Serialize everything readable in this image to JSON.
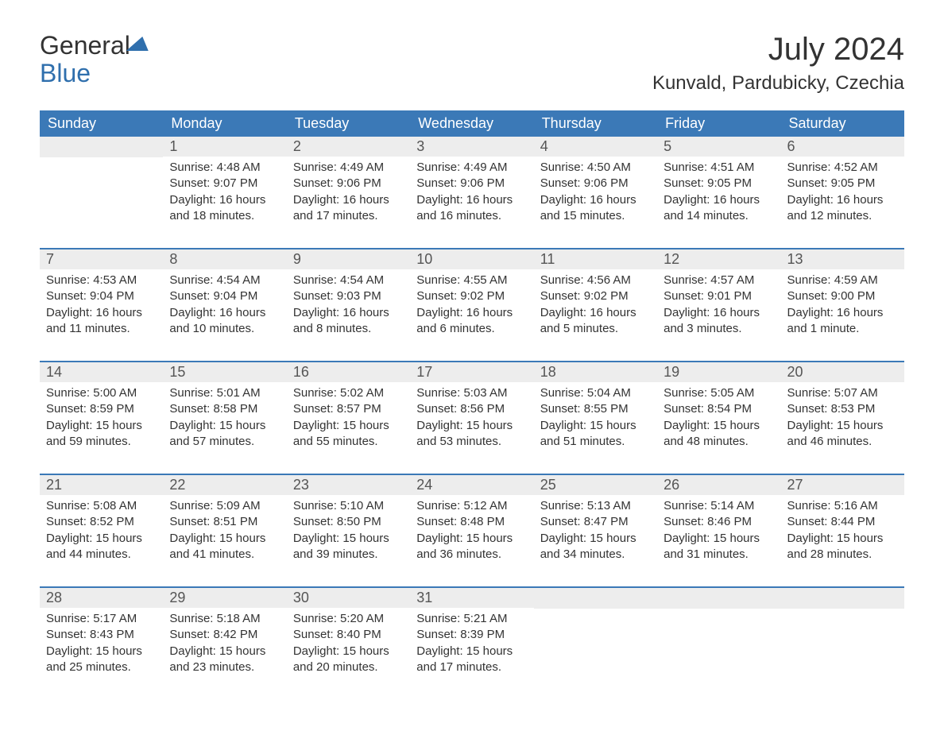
{
  "logo": {
    "line1": "General",
    "line2": "Blue"
  },
  "title": "July 2024",
  "location": "Kunvald, Pardubicky, Czechia",
  "colors": {
    "header_bg": "#3b79b7",
    "header_text": "#ffffff",
    "daynum_bg": "#ededed",
    "accent": "#2f6fad",
    "body_text": "#333333"
  },
  "dayHeaders": [
    "Sunday",
    "Monday",
    "Tuesday",
    "Wednesday",
    "Thursday",
    "Friday",
    "Saturday"
  ],
  "weeks": [
    [
      null,
      {
        "n": "1",
        "sunrise": "4:48 AM",
        "sunset": "9:07 PM",
        "daylight": "16 hours and 18 minutes."
      },
      {
        "n": "2",
        "sunrise": "4:49 AM",
        "sunset": "9:06 PM",
        "daylight": "16 hours and 17 minutes."
      },
      {
        "n": "3",
        "sunrise": "4:49 AM",
        "sunset": "9:06 PM",
        "daylight": "16 hours and 16 minutes."
      },
      {
        "n": "4",
        "sunrise": "4:50 AM",
        "sunset": "9:06 PM",
        "daylight": "16 hours and 15 minutes."
      },
      {
        "n": "5",
        "sunrise": "4:51 AM",
        "sunset": "9:05 PM",
        "daylight": "16 hours and 14 minutes."
      },
      {
        "n": "6",
        "sunrise": "4:52 AM",
        "sunset": "9:05 PM",
        "daylight": "16 hours and 12 minutes."
      }
    ],
    [
      {
        "n": "7",
        "sunrise": "4:53 AM",
        "sunset": "9:04 PM",
        "daylight": "16 hours and 11 minutes."
      },
      {
        "n": "8",
        "sunrise": "4:54 AM",
        "sunset": "9:04 PM",
        "daylight": "16 hours and 10 minutes."
      },
      {
        "n": "9",
        "sunrise": "4:54 AM",
        "sunset": "9:03 PM",
        "daylight": "16 hours and 8 minutes."
      },
      {
        "n": "10",
        "sunrise": "4:55 AM",
        "sunset": "9:02 PM",
        "daylight": "16 hours and 6 minutes."
      },
      {
        "n": "11",
        "sunrise": "4:56 AM",
        "sunset": "9:02 PM",
        "daylight": "16 hours and 5 minutes."
      },
      {
        "n": "12",
        "sunrise": "4:57 AM",
        "sunset": "9:01 PM",
        "daylight": "16 hours and 3 minutes."
      },
      {
        "n": "13",
        "sunrise": "4:59 AM",
        "sunset": "9:00 PM",
        "daylight": "16 hours and 1 minute."
      }
    ],
    [
      {
        "n": "14",
        "sunrise": "5:00 AM",
        "sunset": "8:59 PM",
        "daylight": "15 hours and 59 minutes."
      },
      {
        "n": "15",
        "sunrise": "5:01 AM",
        "sunset": "8:58 PM",
        "daylight": "15 hours and 57 minutes."
      },
      {
        "n": "16",
        "sunrise": "5:02 AM",
        "sunset": "8:57 PM",
        "daylight": "15 hours and 55 minutes."
      },
      {
        "n": "17",
        "sunrise": "5:03 AM",
        "sunset": "8:56 PM",
        "daylight": "15 hours and 53 minutes."
      },
      {
        "n": "18",
        "sunrise": "5:04 AM",
        "sunset": "8:55 PM",
        "daylight": "15 hours and 51 minutes."
      },
      {
        "n": "19",
        "sunrise": "5:05 AM",
        "sunset": "8:54 PM",
        "daylight": "15 hours and 48 minutes."
      },
      {
        "n": "20",
        "sunrise": "5:07 AM",
        "sunset": "8:53 PM",
        "daylight": "15 hours and 46 minutes."
      }
    ],
    [
      {
        "n": "21",
        "sunrise": "5:08 AM",
        "sunset": "8:52 PM",
        "daylight": "15 hours and 44 minutes."
      },
      {
        "n": "22",
        "sunrise": "5:09 AM",
        "sunset": "8:51 PM",
        "daylight": "15 hours and 41 minutes."
      },
      {
        "n": "23",
        "sunrise": "5:10 AM",
        "sunset": "8:50 PM",
        "daylight": "15 hours and 39 minutes."
      },
      {
        "n": "24",
        "sunrise": "5:12 AM",
        "sunset": "8:48 PM",
        "daylight": "15 hours and 36 minutes."
      },
      {
        "n": "25",
        "sunrise": "5:13 AM",
        "sunset": "8:47 PM",
        "daylight": "15 hours and 34 minutes."
      },
      {
        "n": "26",
        "sunrise": "5:14 AM",
        "sunset": "8:46 PM",
        "daylight": "15 hours and 31 minutes."
      },
      {
        "n": "27",
        "sunrise": "5:16 AM",
        "sunset": "8:44 PM",
        "daylight": "15 hours and 28 minutes."
      }
    ],
    [
      {
        "n": "28",
        "sunrise": "5:17 AM",
        "sunset": "8:43 PM",
        "daylight": "15 hours and 25 minutes."
      },
      {
        "n": "29",
        "sunrise": "5:18 AM",
        "sunset": "8:42 PM",
        "daylight": "15 hours and 23 minutes."
      },
      {
        "n": "30",
        "sunrise": "5:20 AM",
        "sunset": "8:40 PM",
        "daylight": "15 hours and 20 minutes."
      },
      {
        "n": "31",
        "sunrise": "5:21 AM",
        "sunset": "8:39 PM",
        "daylight": "15 hours and 17 minutes."
      },
      null,
      null,
      null
    ]
  ],
  "labels": {
    "sunrise": "Sunrise: ",
    "sunset": "Sunset: ",
    "daylight": "Daylight: "
  }
}
